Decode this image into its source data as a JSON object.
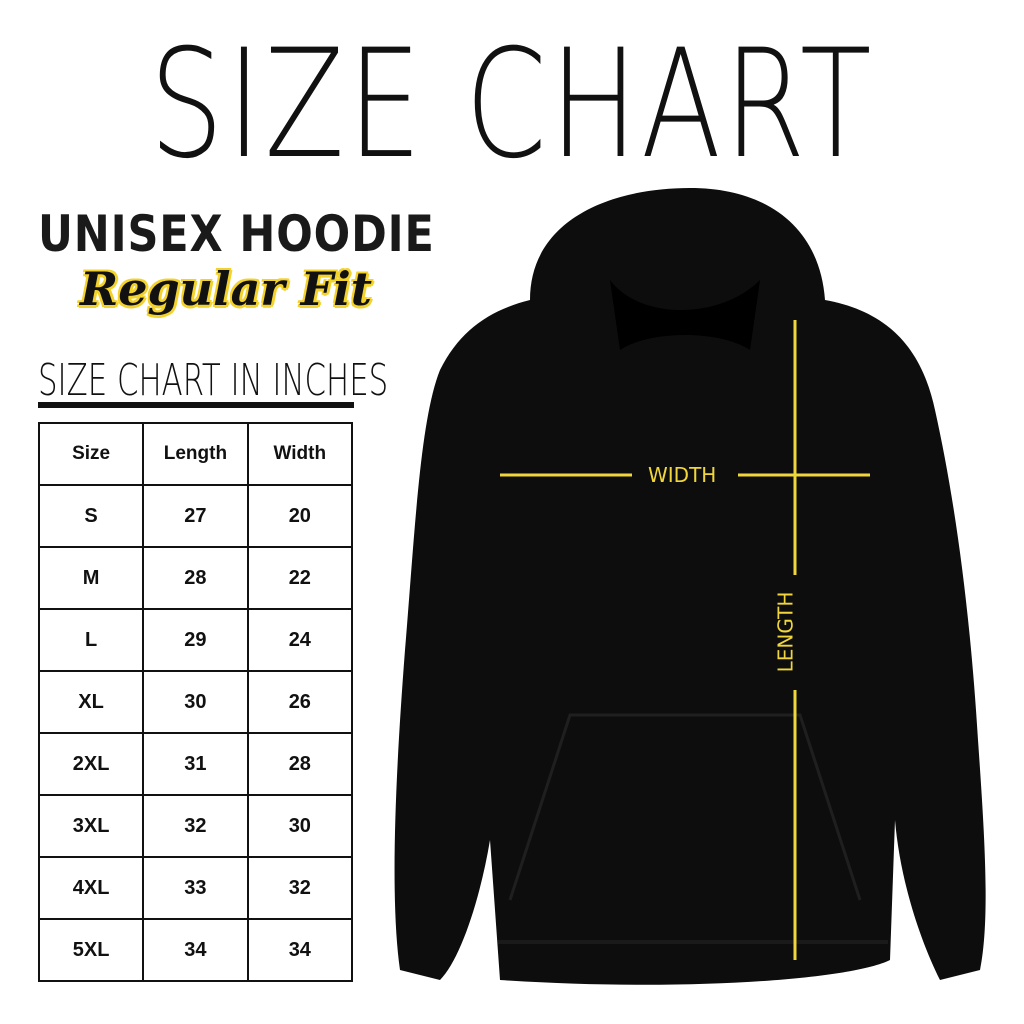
{
  "title": "SIZE CHART",
  "product": "UNISEX HOODIE",
  "fit": "Regular Fit",
  "subtitle": "SIZE CHART IN INCHES",
  "accent_color": "#f0d63c",
  "table": {
    "headers": [
      "Size",
      "Length",
      "Width"
    ],
    "rows": [
      [
        "S",
        "27",
        "20"
      ],
      [
        "M",
        "28",
        "22"
      ],
      [
        "L",
        "29",
        "24"
      ],
      [
        "XL",
        "30",
        "26"
      ],
      [
        "2XL",
        "31",
        "28"
      ],
      [
        "3XL",
        "32",
        "30"
      ],
      [
        "4XL",
        "33",
        "32"
      ],
      [
        "5XL",
        "34",
        "34"
      ]
    ]
  },
  "diagram": {
    "width_label": "WIDTH",
    "length_label": "LENGTH"
  }
}
